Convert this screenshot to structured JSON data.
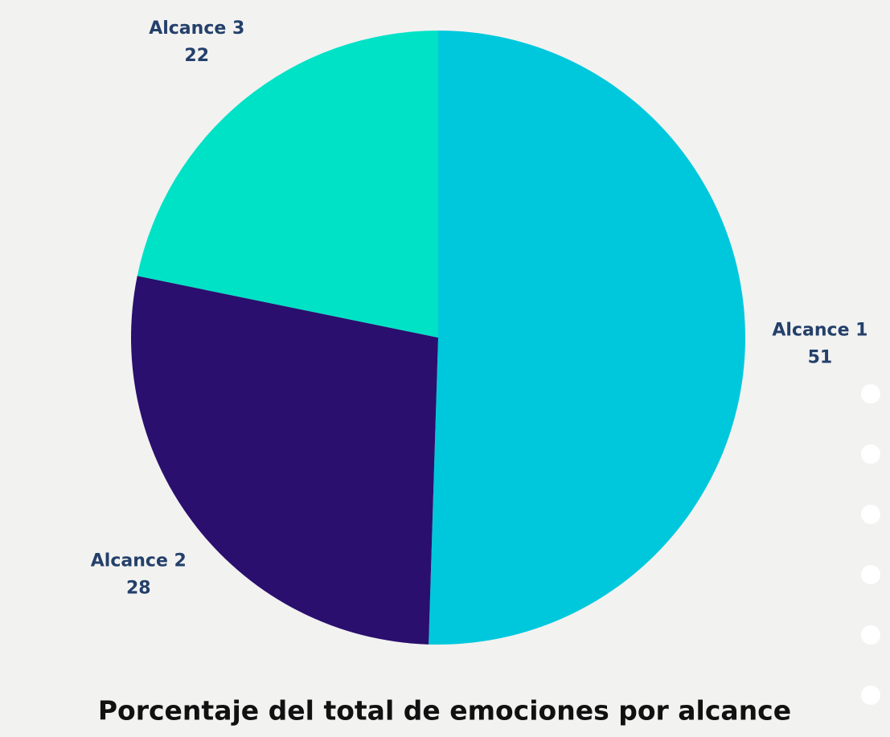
{
  "chart_data": {
    "type": "pie",
    "title": "Porcentaje del total de emociones por alcance",
    "categories": [
      "Alcance 1",
      "Alcance 2",
      "Alcance 3"
    ],
    "values": [
      51,
      28,
      22
    ],
    "colors": [
      "#00c8dc",
      "#2a0f6e",
      "#00e2c6"
    ]
  }
}
